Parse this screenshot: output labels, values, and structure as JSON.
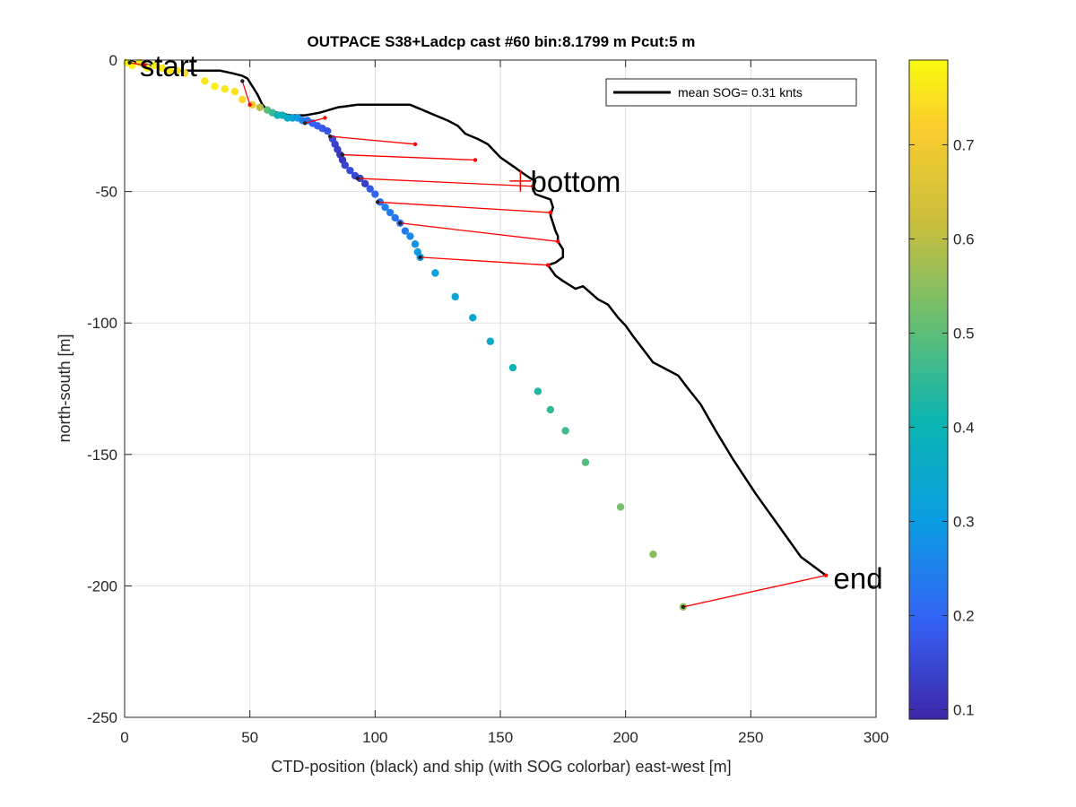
{
  "chart_data": {
    "type": "scatter",
    "title": "OUTPACE S38+Ladcp cast #60 bin:8.1799 m  Pcut:5 m",
    "xlabel": "CTD-position (black) and ship (with SOG colorbar) east-west [m]",
    "ylabel": "north-south [m]",
    "xlim": [
      0,
      300
    ],
    "ylim": [
      -250,
      0
    ],
    "xticks": [
      0,
      50,
      100,
      150,
      200,
      250,
      300
    ],
    "yticks": [
      0,
      -50,
      -100,
      -150,
      -200,
      -250
    ],
    "grid": true,
    "legend": {
      "label": "mean SOG=  0.31 knts",
      "placement": "top-right"
    },
    "colorbar": {
      "range": [
        0.09,
        0.79
      ],
      "ticks": [
        0.1,
        0.2,
        0.3,
        0.4,
        0.5,
        0.6,
        0.7
      ]
    },
    "annotations": [
      {
        "text": "start",
        "x": 6,
        "y": -2
      },
      {
        "text": "bottom",
        "x": 162,
        "y": -46
      },
      {
        "text": "end",
        "x": 283,
        "y": -197
      }
    ],
    "ctd_track": [
      [
        0,
        0
      ],
      [
        5,
        -1
      ],
      [
        10,
        -2
      ],
      [
        14,
        -3
      ],
      [
        18,
        -4
      ],
      [
        22,
        -4
      ],
      [
        27,
        -4
      ],
      [
        32,
        -4
      ],
      [
        38,
        -4
      ],
      [
        43,
        -5
      ],
      [
        47,
        -6
      ],
      [
        49,
        -7
      ],
      [
        51,
        -10
      ],
      [
        53,
        -13
      ],
      [
        55,
        -17
      ],
      [
        57,
        -19
      ],
      [
        61,
        -20
      ],
      [
        66,
        -21
      ],
      [
        72,
        -21
      ],
      [
        78,
        -20
      ],
      [
        85,
        -18
      ],
      [
        93,
        -17
      ],
      [
        100,
        -17
      ],
      [
        107,
        -17
      ],
      [
        114,
        -17
      ],
      [
        119,
        -19
      ],
      [
        124,
        -21
      ],
      [
        129,
        -23
      ],
      [
        133,
        -25
      ],
      [
        136,
        -28
      ],
      [
        141,
        -30
      ],
      [
        145,
        -32
      ],
      [
        148,
        -35
      ],
      [
        150,
        -37
      ],
      [
        153,
        -39
      ],
      [
        156,
        -41
      ],
      [
        159,
        -43
      ],
      [
        162,
        -45
      ],
      [
        164,
        -46
      ],
      [
        163,
        -49
      ],
      [
        164,
        -51
      ],
      [
        167,
        -52
      ],
      [
        170,
        -53
      ],
      [
        171,
        -56
      ],
      [
        170,
        -59
      ],
      [
        171,
        -62
      ],
      [
        172,
        -65
      ],
      [
        173,
        -67
      ],
      [
        173,
        -69
      ],
      [
        175,
        -72
      ],
      [
        175,
        -75
      ],
      [
        172,
        -77
      ],
      [
        169,
        -78
      ],
      [
        172,
        -82
      ],
      [
        175,
        -84
      ],
      [
        180,
        -87
      ],
      [
        183,
        -86
      ],
      [
        189,
        -91
      ],
      [
        193,
        -93
      ],
      [
        197,
        -98
      ],
      [
        200,
        -101
      ],
      [
        203,
        -105
      ],
      [
        207,
        -110
      ],
      [
        211,
        -115
      ],
      [
        215,
        -117
      ],
      [
        221,
        -120
      ],
      [
        225,
        -125
      ],
      [
        230,
        -131
      ],
      [
        236,
        -141
      ],
      [
        243,
        -152
      ],
      [
        252,
        -165
      ],
      [
        261,
        -177
      ],
      [
        270,
        -189
      ],
      [
        280,
        -196
      ]
    ],
    "red_segments": [
      [
        [
          2,
          -1
        ],
        [
          8,
          -2
        ]
      ],
      [
        [
          47,
          -8
        ],
        [
          50,
          -17
        ]
      ],
      [
        [
          72,
          -24
        ],
        [
          80,
          -22
        ]
      ],
      [
        [
          82,
          -29
        ],
        [
          116,
          -32
        ]
      ],
      [
        [
          87,
          -36
        ],
        [
          140,
          -38
        ]
      ],
      [
        [
          93,
          -45
        ],
        [
          163,
          -48
        ]
      ],
      [
        [
          101,
          -54
        ],
        [
          170,
          -58
        ]
      ],
      [
        [
          110,
          -62
        ],
        [
          173,
          -69
        ]
      ],
      [
        [
          118,
          -75
        ],
        [
          169,
          -78
        ]
      ],
      [
        [
          223,
          -208
        ],
        [
          280,
          -196
        ]
      ]
    ],
    "ship_points": [
      {
        "x": 1,
        "y": -1,
        "sog": 0.78
      },
      {
        "x": 3,
        "y": -2,
        "sog": 0.78
      },
      {
        "x": 6,
        "y": -1,
        "sog": 0.77
      },
      {
        "x": 9,
        "y": -3,
        "sog": 0.77
      },
      {
        "x": 12,
        "y": -2,
        "sog": 0.77
      },
      {
        "x": 15,
        "y": -3,
        "sog": 0.76
      },
      {
        "x": 18,
        "y": -4,
        "sog": 0.76
      },
      {
        "x": 21,
        "y": -4,
        "sog": 0.75
      },
      {
        "x": 24,
        "y": -5,
        "sog": 0.74
      },
      {
        "x": 32,
        "y": -8,
        "sog": 0.76
      },
      {
        "x": 36,
        "y": -10,
        "sog": 0.77
      },
      {
        "x": 40,
        "y": -11,
        "sog": 0.76
      },
      {
        "x": 44,
        "y": -12,
        "sog": 0.75
      },
      {
        "x": 47,
        "y": -15,
        "sog": 0.74
      },
      {
        "x": 51,
        "y": -17,
        "sog": 0.7
      },
      {
        "x": 54,
        "y": -18,
        "sog": 0.6
      },
      {
        "x": 57,
        "y": -19,
        "sog": 0.5
      },
      {
        "x": 59,
        "y": -20,
        "sog": 0.46
      },
      {
        "x": 61,
        "y": -21,
        "sog": 0.4
      },
      {
        "x": 63,
        "y": -21,
        "sog": 0.38
      },
      {
        "x": 65,
        "y": -22,
        "sog": 0.37
      },
      {
        "x": 67,
        "y": -22,
        "sog": 0.32
      },
      {
        "x": 69,
        "y": -22,
        "sog": 0.3
      },
      {
        "x": 71,
        "y": -23,
        "sog": 0.25
      },
      {
        "x": 73,
        "y": -23,
        "sog": 0.22
      },
      {
        "x": 75,
        "y": -24,
        "sog": 0.2
      },
      {
        "x": 77,
        "y": -25,
        "sog": 0.19
      },
      {
        "x": 79,
        "y": -26,
        "sog": 0.18
      },
      {
        "x": 81,
        "y": -27,
        "sog": 0.17
      },
      {
        "x": 83,
        "y": -30,
        "sog": 0.15
      },
      {
        "x": 84,
        "y": -32,
        "sog": 0.14
      },
      {
        "x": 85,
        "y": -34,
        "sog": 0.13
      },
      {
        "x": 86,
        "y": -36,
        "sog": 0.12
      },
      {
        "x": 87,
        "y": -38,
        "sog": 0.12
      },
      {
        "x": 88,
        "y": -40,
        "sog": 0.14
      },
      {
        "x": 90,
        "y": -42,
        "sog": 0.16
      },
      {
        "x": 92,
        "y": -44,
        "sog": 0.15
      },
      {
        "x": 94,
        "y": -45,
        "sog": 0.14
      },
      {
        "x": 96,
        "y": -47,
        "sog": 0.13
      },
      {
        "x": 98,
        "y": -49,
        "sog": 0.18
      },
      {
        "x": 100,
        "y": -51,
        "sog": 0.2
      },
      {
        "x": 102,
        "y": -54,
        "sog": 0.22
      },
      {
        "x": 104,
        "y": -56,
        "sog": 0.25
      },
      {
        "x": 106,
        "y": -58,
        "sog": 0.24
      },
      {
        "x": 108,
        "y": -60,
        "sog": 0.23
      },
      {
        "x": 110,
        "y": -62,
        "sog": 0.22
      },
      {
        "x": 112,
        "y": -65,
        "sog": 0.24
      },
      {
        "x": 114,
        "y": -67,
        "sog": 0.27
      },
      {
        "x": 116,
        "y": -70,
        "sog": 0.28
      },
      {
        "x": 117,
        "y": -73,
        "sog": 0.3
      },
      {
        "x": 118,
        "y": -75,
        "sog": 0.31
      },
      {
        "x": 124,
        "y": -81,
        "sog": 0.32
      },
      {
        "x": 132,
        "y": -90,
        "sog": 0.33
      },
      {
        "x": 139,
        "y": -98,
        "sog": 0.34
      },
      {
        "x": 146,
        "y": -107,
        "sog": 0.36
      },
      {
        "x": 155,
        "y": -117,
        "sog": 0.4
      },
      {
        "x": 165,
        "y": -126,
        "sog": 0.43
      },
      {
        "x": 170,
        "y": -133,
        "sog": 0.45
      },
      {
        "x": 176,
        "y": -141,
        "sog": 0.47
      },
      {
        "x": 184,
        "y": -153,
        "sog": 0.49
      },
      {
        "x": 198,
        "y": -170,
        "sog": 0.53
      },
      {
        "x": 211,
        "y": -188,
        "sog": 0.55
      },
      {
        "x": 223,
        "y": -208,
        "sog": 0.56
      }
    ]
  }
}
